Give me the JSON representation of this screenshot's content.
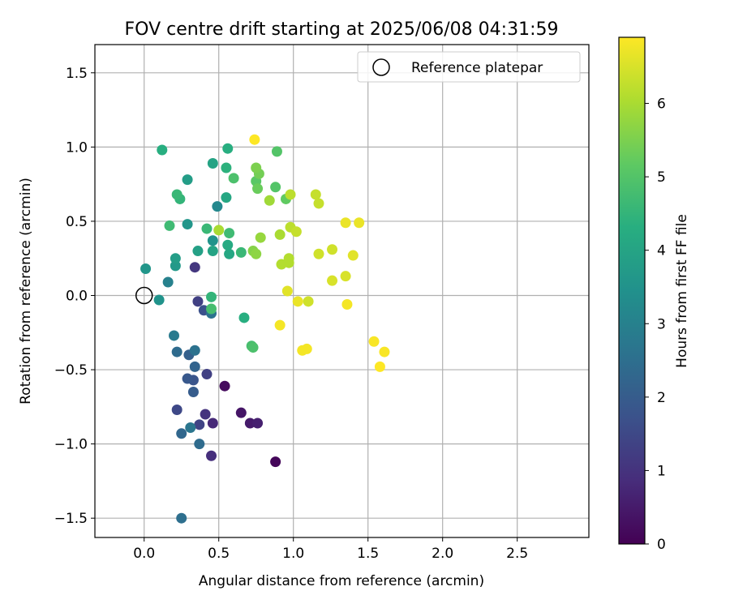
{
  "chart_data": {
    "type": "scatter",
    "title": "FOV centre drift starting at 2025/06/08 04:31:59",
    "xlabel": "Angular distance from reference (arcmin)",
    "ylabel": "Rotation from reference (arcmin)",
    "xlim": [
      -0.33,
      2.98
    ],
    "ylim": [
      -1.63,
      1.69
    ],
    "xticks": [
      "0.0",
      "0.5",
      "1.0",
      "1.5",
      "2.0",
      "2.5"
    ],
    "xtick_values": [
      0,
      0.5,
      1.0,
      1.5,
      2.0,
      2.5
    ],
    "yticks": [
      "−1.5",
      "−1.0",
      "−0.5",
      "0.0",
      "0.5",
      "1.0",
      "1.5"
    ],
    "ytick_values": [
      -1.5,
      -1.0,
      -0.5,
      0.0,
      0.5,
      1.0,
      1.5
    ],
    "grid": true,
    "legend": {
      "placement": "top-right",
      "entries": [
        "Reference platepar"
      ]
    },
    "reference_point": {
      "x": 0.0,
      "y": 0.0
    },
    "colorbar": {
      "label": "Hours from first FF file",
      "range": [
        0,
        6.9
      ],
      "ticks": [
        "0",
        "1",
        "2",
        "3",
        "4",
        "5",
        "6"
      ],
      "tick_values": [
        0,
        1,
        2,
        3,
        4,
        5,
        6
      ],
      "colormap": "viridis"
    },
    "series": [
      {
        "points": [
          {
            "x": 0.88,
            "y": -1.12,
            "h": 0.1
          },
          {
            "x": 0.54,
            "y": -0.61,
            "h": 0.2
          },
          {
            "x": 0.65,
            "y": -0.79,
            "h": 0.4
          },
          {
            "x": 0.71,
            "y": -0.86,
            "h": 0.5
          },
          {
            "x": 0.76,
            "y": -0.86,
            "h": 0.6
          },
          {
            "x": 0.46,
            "y": -0.86,
            "h": 0.8
          },
          {
            "x": 0.45,
            "y": -1.08,
            "h": 0.9
          },
          {
            "x": 0.41,
            "y": -0.8,
            "h": 1.0
          },
          {
            "x": 0.34,
            "y": 0.19,
            "h": 1.1
          },
          {
            "x": 0.36,
            "y": -0.04,
            "h": 1.3
          },
          {
            "x": 0.42,
            "y": -0.53,
            "h": 1.3
          },
          {
            "x": 0.37,
            "y": -0.87,
            "h": 1.4
          },
          {
            "x": 0.22,
            "y": -0.77,
            "h": 1.5
          },
          {
            "x": 0.4,
            "y": -0.1,
            "h": 1.7
          },
          {
            "x": 0.33,
            "y": -0.57,
            "h": 1.8
          },
          {
            "x": 0.29,
            "y": -0.56,
            "h": 1.9
          },
          {
            "x": 0.33,
            "y": -0.65,
            "h": 2.0
          },
          {
            "x": 0.3,
            "y": -0.4,
            "h": 2.1
          },
          {
            "x": 0.34,
            "y": -0.48,
            "h": 2.2
          },
          {
            "x": 0.25,
            "y": -0.93,
            "h": 2.3
          },
          {
            "x": 0.37,
            "y": -1.0,
            "h": 2.4
          },
          {
            "x": 0.22,
            "y": -0.38,
            "h": 2.4
          },
          {
            "x": 0.25,
            "y": -1.5,
            "h": 2.5
          },
          {
            "x": 0.45,
            "y": -0.12,
            "h": 2.6
          },
          {
            "x": 0.34,
            "y": -0.37,
            "h": 2.6
          },
          {
            "x": 0.31,
            "y": -0.89,
            "h": 2.7
          },
          {
            "x": 0.2,
            "y": -0.27,
            "h": 2.8
          },
          {
            "x": 0.16,
            "y": 0.09,
            "h": 3.0
          },
          {
            "x": 0.49,
            "y": 0.6,
            "h": 3.2
          },
          {
            "x": 0.29,
            "y": 0.48,
            "h": 3.6
          },
          {
            "x": 0.46,
            "y": 0.37,
            "h": 3.5
          },
          {
            "x": 0.1,
            "y": -0.03,
            "h": 3.5
          },
          {
            "x": 0.01,
            "y": 0.18,
            "h": 3.6
          },
          {
            "x": 0.21,
            "y": 0.2,
            "h": 3.7
          },
          {
            "x": 0.29,
            "y": 0.78,
            "h": 3.8
          },
          {
            "x": 0.21,
            "y": 0.25,
            "h": 3.8
          },
          {
            "x": 0.36,
            "y": 0.3,
            "h": 3.9
          },
          {
            "x": 0.46,
            "y": 0.89,
            "h": 4.0
          },
          {
            "x": 0.46,
            "y": 0.3,
            "h": 4.0
          },
          {
            "x": 0.55,
            "y": 0.66,
            "h": 4.1
          },
          {
            "x": 0.57,
            "y": 0.28,
            "h": 4.1
          },
          {
            "x": 0.56,
            "y": 0.34,
            "h": 4.2
          },
          {
            "x": 0.12,
            "y": 0.98,
            "h": 4.3
          },
          {
            "x": 0.56,
            "y": 0.99,
            "h": 4.3
          },
          {
            "x": 0.67,
            "y": -0.15,
            "h": 4.3
          },
          {
            "x": 0.55,
            "y": 0.86,
            "h": 4.4
          },
          {
            "x": 0.45,
            "y": -0.01,
            "h": 4.5
          },
          {
            "x": 0.24,
            "y": 0.65,
            "h": 4.5
          },
          {
            "x": 0.22,
            "y": 0.68,
            "h": 4.6
          },
          {
            "x": 0.42,
            "y": 0.45,
            "h": 4.6
          },
          {
            "x": 0.65,
            "y": 0.29,
            "h": 4.6
          },
          {
            "x": 0.17,
            "y": 0.47,
            "h": 4.7
          },
          {
            "x": 0.57,
            "y": 0.42,
            "h": 4.7
          },
          {
            "x": 0.45,
            "y": -0.09,
            "h": 4.8
          },
          {
            "x": 0.72,
            "y": -0.34,
            "h": 4.8
          },
          {
            "x": 0.73,
            "y": -0.35,
            "h": 4.9
          },
          {
            "x": 0.6,
            "y": 0.79,
            "h": 4.9
          },
          {
            "x": 0.88,
            "y": 0.73,
            "h": 5.0
          },
          {
            "x": 0.89,
            "y": 0.97,
            "h": 5.0
          },
          {
            "x": 0.75,
            "y": 0.77,
            "h": 5.1
          },
          {
            "x": 0.95,
            "y": 0.65,
            "h": 5.2
          },
          {
            "x": 0.76,
            "y": 0.72,
            "h": 5.3
          },
          {
            "x": 0.77,
            "y": 0.82,
            "h": 5.4
          },
          {
            "x": 0.75,
            "y": 0.86,
            "h": 5.5
          },
          {
            "x": 0.73,
            "y": 0.3,
            "h": 5.6
          },
          {
            "x": 0.75,
            "y": 0.28,
            "h": 5.7
          },
          {
            "x": 0.78,
            "y": 0.39,
            "h": 5.8
          },
          {
            "x": 0.84,
            "y": 0.64,
            "h": 5.9
          },
          {
            "x": 0.5,
            "y": 0.44,
            "h": 6.0
          },
          {
            "x": 0.91,
            "y": 0.41,
            "h": 6.0
          },
          {
            "x": 0.92,
            "y": 0.21,
            "h": 6.1
          },
          {
            "x": 0.97,
            "y": 0.25,
            "h": 6.1
          },
          {
            "x": 0.97,
            "y": 0.22,
            "h": 6.1
          },
          {
            "x": 0.98,
            "y": 0.68,
            "h": 6.2
          },
          {
            "x": 0.98,
            "y": 0.46,
            "h": 6.2
          },
          {
            "x": 1.02,
            "y": 0.43,
            "h": 6.3
          },
          {
            "x": 1.15,
            "y": 0.68,
            "h": 6.3
          },
          {
            "x": 1.17,
            "y": 0.62,
            "h": 6.3
          },
          {
            "x": 1.1,
            "y": -0.04,
            "h": 6.4
          },
          {
            "x": 1.17,
            "y": 0.28,
            "h": 6.4
          },
          {
            "x": 1.26,
            "y": 0.31,
            "h": 6.4
          },
          {
            "x": 1.35,
            "y": 0.13,
            "h": 6.5
          },
          {
            "x": 1.26,
            "y": 0.1,
            "h": 6.5
          },
          {
            "x": 1.4,
            "y": 0.27,
            "h": 6.6
          },
          {
            "x": 0.96,
            "y": 0.03,
            "h": 6.6
          },
          {
            "x": 1.35,
            "y": 0.49,
            "h": 6.7
          },
          {
            "x": 1.44,
            "y": 0.49,
            "h": 6.7
          },
          {
            "x": 1.03,
            "y": -0.04,
            "h": 6.7
          },
          {
            "x": 1.36,
            "y": -0.06,
            "h": 6.8
          },
          {
            "x": 0.91,
            "y": -0.2,
            "h": 6.8
          },
          {
            "x": 1.06,
            "y": -0.37,
            "h": 6.8
          },
          {
            "x": 1.09,
            "y": -0.36,
            "h": 6.8
          },
          {
            "x": 1.54,
            "y": -0.31,
            "h": 6.85
          },
          {
            "x": 1.61,
            "y": -0.38,
            "h": 6.85
          },
          {
            "x": 1.58,
            "y": -0.48,
            "h": 6.9
          },
          {
            "x": 0.74,
            "y": 1.05,
            "h": 6.9
          }
        ]
      }
    ]
  }
}
